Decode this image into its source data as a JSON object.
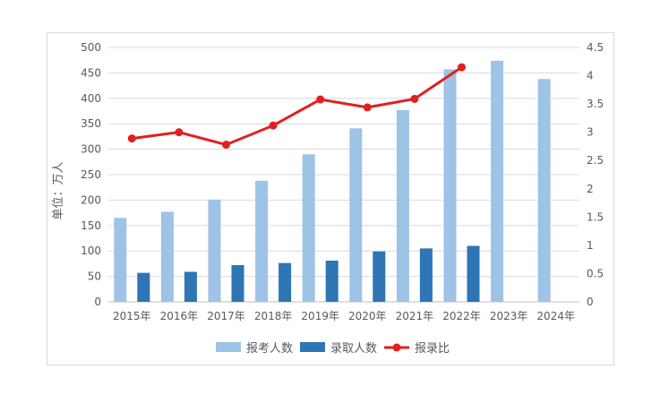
{
  "chart_data": {
    "type": "bar",
    "categories": [
      "2015年",
      "2016年",
      "2017年",
      "2018年",
      "2019年",
      "2020年",
      "2021年",
      "2022年",
      "2023年",
      "2024年"
    ],
    "series": [
      {
        "name": "报考人数",
        "type": "bar",
        "axis": "left",
        "color": "#9dc3e6",
        "values": [
          164.9,
          177,
          201,
          238,
          290,
          341,
          377,
          457,
          474,
          438
        ]
      },
      {
        "name": "录取人数",
        "type": "bar",
        "axis": "left",
        "color": "#2e75b6",
        "values": [
          57,
          59,
          72.2,
          76.3,
          81,
          99,
          105,
          110,
          null,
          null
        ]
      },
      {
        "name": "报录比",
        "type": "line",
        "axis": "right",
        "color": "#e02020",
        "values": [
          2.89,
          3.0,
          2.78,
          3.12,
          3.58,
          3.44,
          3.59,
          4.15,
          null,
          null
        ]
      }
    ],
    "ylabel": "单位：万人",
    "ylim": [
      0,
      500
    ],
    "y_ticks": [
      "0",
      "50",
      "100",
      "150",
      "200",
      "250",
      "300",
      "350",
      "400",
      "450",
      "500"
    ],
    "y2lim": [
      0,
      4.5
    ],
    "y2_ticks": [
      "0",
      "0.5",
      "1",
      "1.5",
      "2",
      "2.5",
      "3",
      "3.5",
      "4",
      "4.5"
    ],
    "grid": true,
    "legend_position": "bottom"
  }
}
